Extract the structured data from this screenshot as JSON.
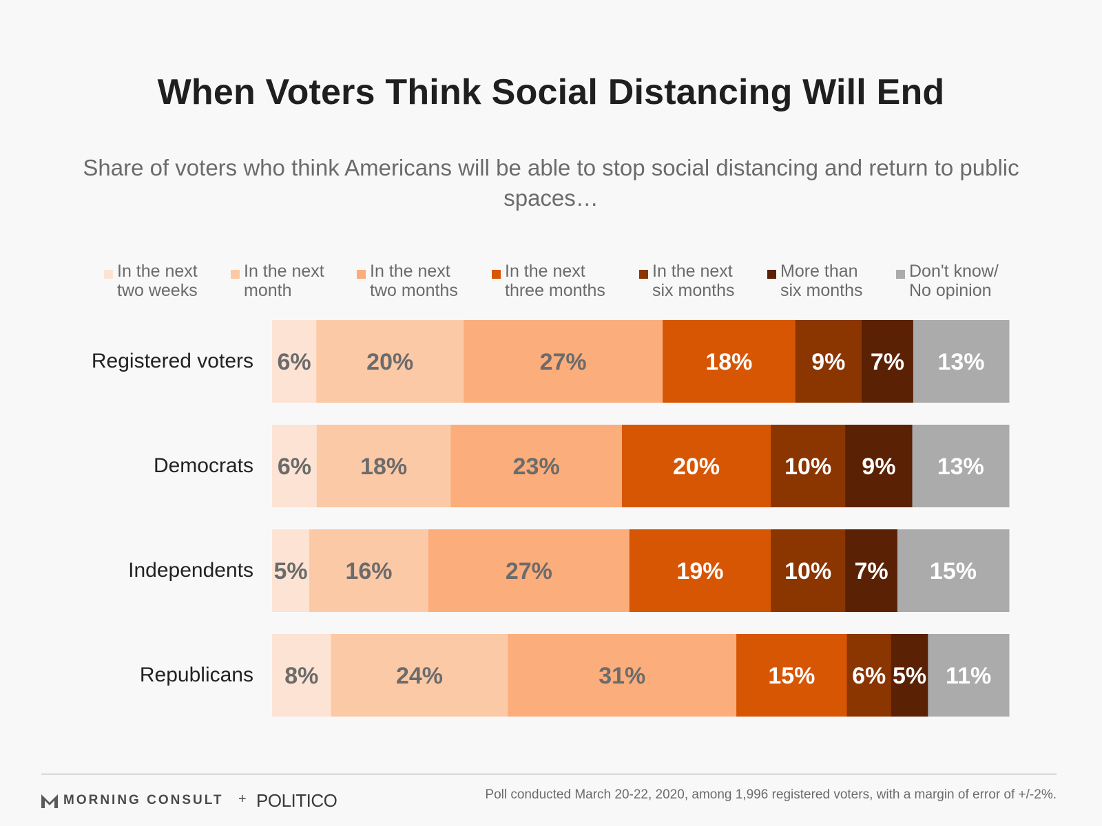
{
  "chart_data": {
    "type": "bar",
    "orientation": "horizontal",
    "stacked": true,
    "normalized_to_100": true,
    "title": "When Voters Think Social Distancing Will End",
    "subtitle": "Share of voters who think Americans will be able to stop social distancing and return to public spaces…",
    "categories": [
      "Registered voters",
      "Democrats",
      "Independents",
      "Republicans"
    ],
    "series": [
      {
        "name": "In the next\ntwo weeks",
        "color": "#fde3d3",
        "label_color": "#6b6b6b",
        "values": [
          6,
          6,
          5,
          8
        ]
      },
      {
        "name": "In the next\nmonth",
        "color": "#fcc9a6",
        "label_color": "#6b6b6b",
        "values": [
          20,
          18,
          16,
          24
        ]
      },
      {
        "name": "In the next\ntwo months",
        "color": "#fbad7b",
        "label_color": "#6b6b6b",
        "values": [
          27,
          23,
          27,
          31
        ]
      },
      {
        "name": "In the next\nthree months",
        "color": "#d75604",
        "label_color": "#ffffff",
        "values": [
          18,
          20,
          19,
          15
        ]
      },
      {
        "name": "In the next\nsix months",
        "color": "#8b3501",
        "label_color": "#ffffff",
        "values": [
          9,
          10,
          10,
          6
        ]
      },
      {
        "name": "More than\nsix months",
        "color": "#5a2104",
        "label_color": "#ffffff",
        "values": [
          7,
          9,
          7,
          5
        ]
      },
      {
        "name": "Don't know/\nNo opinion",
        "color": "#ababab",
        "label_color": "#ffffff",
        "values": [
          13,
          13,
          15,
          11
        ]
      }
    ],
    "xlabel": "",
    "ylabel": "",
    "legend": "top",
    "grid": false
  },
  "footer": {
    "brand_primary": "MORNING CONSULT",
    "brand_plus": "+",
    "brand_secondary": "POLITICO",
    "note": "Poll conducted March 20-22, 2020, among 1,996 registered voters, with a margin of error of +/-2%."
  }
}
